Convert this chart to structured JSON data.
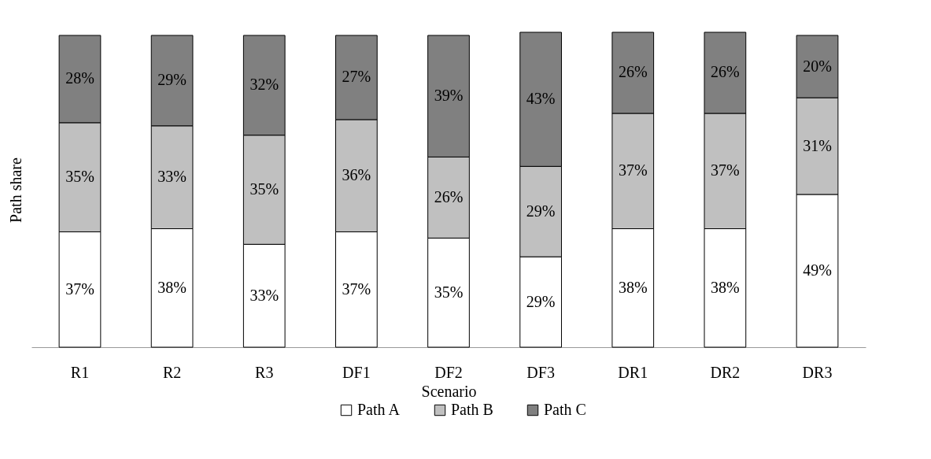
{
  "chart_data": {
    "type": "bar",
    "stacked": true,
    "xlabel": "Scenario",
    "ylabel": "Path share",
    "legend": "bottom",
    "tick_labels": "x",
    "grid": false,
    "categories": [
      "R1",
      "R2",
      "R3",
      "DF1",
      "DF2",
      "DF3",
      "DR1",
      "DR2",
      "DR3"
    ],
    "series": [
      {
        "name": "Path A",
        "color": "#ffffff",
        "values": [
          37,
          38,
          33,
          37,
          35,
          29,
          38,
          38,
          49
        ],
        "value_labels": [
          "37%",
          "38%",
          "33%",
          "37%",
          "35%",
          "29%",
          "38%",
          "38%",
          "49%"
        ]
      },
      {
        "name": "Path B",
        "color": "#c0c0c0",
        "values": [
          35,
          33,
          35,
          36,
          26,
          29,
          37,
          37,
          31
        ],
        "value_labels": [
          "35%",
          "33%",
          "35%",
          "36%",
          "26%",
          "29%",
          "37%",
          "37%",
          "31%"
        ]
      },
      {
        "name": "Path C",
        "color": "#808080",
        "values": [
          28,
          29,
          32,
          27,
          39,
          43,
          26,
          26,
          20
        ],
        "value_labels": [
          "28%",
          "29%",
          "32%",
          "27%",
          "39%",
          "43%",
          "26%",
          "26%",
          "20%"
        ]
      }
    ]
  }
}
